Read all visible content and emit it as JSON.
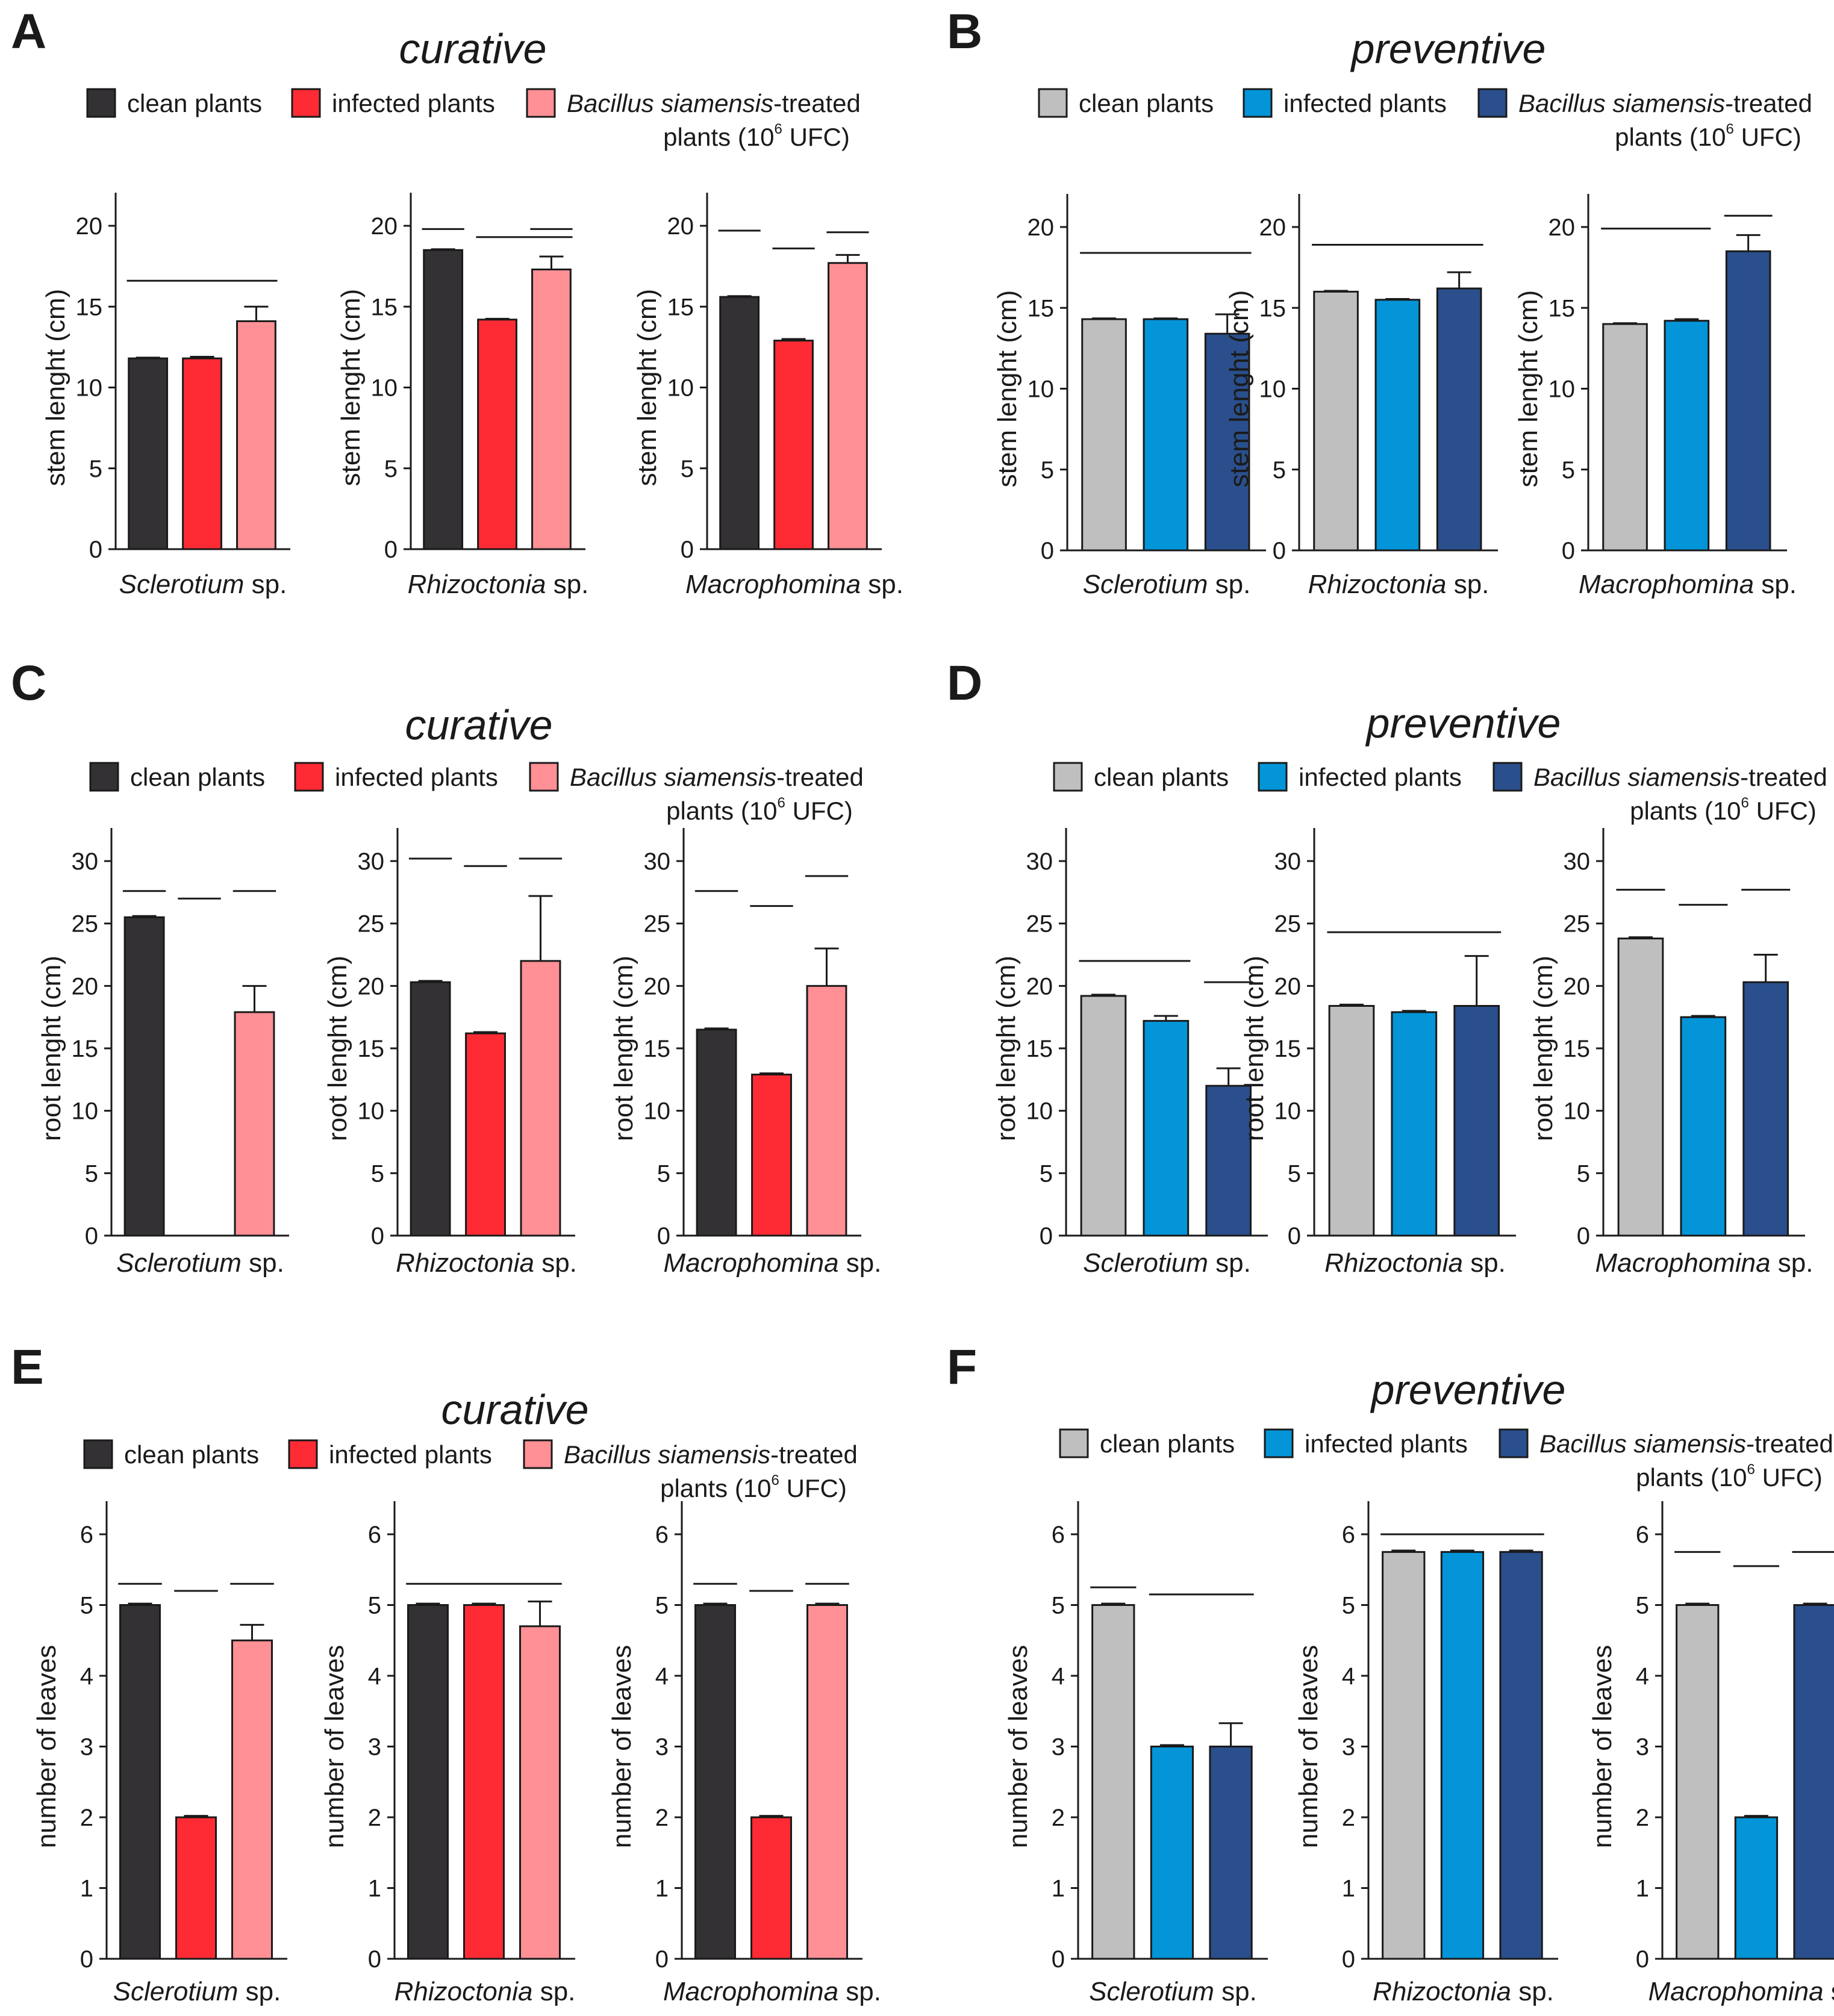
{
  "colors": {
    "curative": [
      "#333133",
      "#ff2b34",
      "#ff9095"
    ],
    "preventive": [
      "#bfbfc0",
      "#0395d8",
      "#2a4f8c"
    ]
  },
  "chart_data": [
    {
      "panel": "A",
      "title": "curative",
      "type": "bar",
      "scheme": "curative",
      "legend": [
        "clean plants",
        "infected plants",
        "Bacillus siamensis-treated plants (10^6 UFC)"
      ],
      "legend_text": {
        "clean": "clean plants",
        "infected": "infected plants",
        "treated_italic": "Bacillus siamensis",
        "treated_rest": "-treated",
        "line2_a": "plants (10",
        "line2_sup": "6",
        "line2_b": " UFC)"
      },
      "ylabel": "stem lenght (cm)",
      "ylim": [
        0,
        20
      ],
      "yticks": [
        0,
        5,
        10,
        15,
        20
      ],
      "groups": [
        {
          "name_italic": "Sclerotium",
          "name_rest": " sp.",
          "values": [
            11.8,
            11.8,
            14.1
          ],
          "errors": [
            0.05,
            0.1,
            0.9
          ],
          "sig_lines": [
            [
              0,
              2,
              16.6
            ]
          ]
        },
        {
          "name_italic": "Rhizoctonia",
          "name_rest": " sp.",
          "values": [
            18.5,
            14.2,
            17.3
          ],
          "errors": [
            0.05,
            0.05,
            0.8
          ],
          "sig_lines": [
            [
              0,
              0,
              19.8
            ],
            [
              1,
              2,
              19.3
            ],
            [
              2,
              2,
              19.8
            ]
          ]
        },
        {
          "name_italic": "Macrophomina",
          "name_rest": " sp.",
          "values": [
            15.6,
            12.9,
            17.7
          ],
          "errors": [
            0.05,
            0.1,
            0.5
          ],
          "sig_lines": [
            [
              0,
              0,
              19.7
            ],
            [
              1,
              1,
              18.6
            ],
            [
              2,
              2,
              19.6
            ]
          ]
        }
      ]
    },
    {
      "panel": "B",
      "title": "preventive",
      "type": "bar",
      "scheme": "preventive",
      "legend": [
        "clean plants",
        "infected plants",
        "Bacillus siamensis-treated plants (10^6 UFC)"
      ],
      "legend_text": {
        "clean": "clean plants",
        "infected": "infected plants",
        "treated_italic": "Bacillus siamensis",
        "treated_rest": "-treated",
        "line2_a": "plants (10",
        "line2_sup": "6",
        "line2_b": " UFC)"
      },
      "ylabel": "stem lenght (cm)",
      "ylim": [
        0,
        20
      ],
      "yticks": [
        0,
        5,
        10,
        15,
        20
      ],
      "groups": [
        {
          "name_italic": "Sclerotium",
          "name_rest": " sp.",
          "values": [
            14.3,
            14.3,
            13.4
          ],
          "errors": [
            0.05,
            0.05,
            1.2
          ],
          "sig_lines": [
            [
              0,
              2,
              18.4
            ]
          ]
        },
        {
          "name_italic": "Rhizoctonia",
          "name_rest": " sp.",
          "values": [
            16.0,
            15.5,
            16.2
          ],
          "errors": [
            0.05,
            0.05,
            1.0
          ],
          "sig_lines": [
            [
              0,
              2,
              18.9
            ]
          ]
        },
        {
          "name_italic": "Macrophomina",
          "name_rest": " sp.",
          "values": [
            14.0,
            14.2,
            18.5
          ],
          "errors": [
            0.05,
            0.1,
            1.0
          ],
          "sig_lines": [
            [
              0,
              1,
              19.9
            ],
            [
              2,
              2,
              20.7
            ]
          ]
        }
      ]
    },
    {
      "panel": "C",
      "title": "curative",
      "type": "bar",
      "scheme": "curative",
      "legend": [
        "clean plants",
        "infected plants",
        "Bacillus siamensis-treated plants (10^6 UFC)"
      ],
      "legend_text": {
        "clean": "clean plants",
        "infected": "infected plants",
        "treated_italic": "Bacillus siamensis",
        "treated_rest": "-treated",
        "line2_a": "plants (10",
        "line2_sup": "6",
        "line2_b": " UFC)"
      },
      "ylabel": "root lenght (cm)",
      "ylim": [
        0,
        30
      ],
      "yticks": [
        0,
        5,
        10,
        15,
        20,
        25,
        30
      ],
      "groups": [
        {
          "name_italic": "Sclerotium",
          "name_rest": " sp.",
          "values": [
            25.5,
            0,
            17.9
          ],
          "errors": [
            0.1,
            0,
            2.1
          ],
          "sig_lines": [
            [
              0,
              0,
              27.6
            ],
            [
              1,
              1,
              27.0
            ],
            [
              2,
              2,
              27.6
            ]
          ]
        },
        {
          "name_italic": "Rhizoctonia",
          "name_rest": " sp.",
          "values": [
            20.3,
            16.2,
            22.0
          ],
          "errors": [
            0.1,
            0.1,
            5.2
          ],
          "sig_lines": [
            [
              0,
              0,
              30.2
            ],
            [
              1,
              1,
              29.6
            ],
            [
              2,
              2,
              30.2
            ]
          ]
        },
        {
          "name_italic": "Macrophomina",
          "name_rest": " sp.",
          "values": [
            16.5,
            12.9,
            20.0
          ],
          "errors": [
            0.1,
            0.1,
            3.0
          ],
          "sig_lines": [
            [
              0,
              0,
              27.6
            ],
            [
              1,
              1,
              26.4
            ],
            [
              2,
              2,
              28.8
            ]
          ]
        }
      ]
    },
    {
      "panel": "D",
      "title": "preventive",
      "type": "bar",
      "scheme": "preventive",
      "legend": [
        "clean plants",
        "infected plants",
        "Bacillus siamensis-treated plants (10^6 UFC)"
      ],
      "legend_text": {
        "clean": "clean plants",
        "infected": "infected plants",
        "treated_italic": "Bacillus siamensis",
        "treated_rest": "-treated",
        "line2_a": "plants (10",
        "line2_sup": "6",
        "line2_b": " UFC)"
      },
      "ylabel": "root lenght (cm)",
      "ylim": [
        0,
        30
      ],
      "yticks": [
        0,
        5,
        10,
        15,
        20,
        25,
        30
      ],
      "groups": [
        {
          "name_italic": "Sclerotium",
          "name_rest": " sp.",
          "values": [
            19.2,
            17.2,
            12.0
          ],
          "errors": [
            0.1,
            0.4,
            1.4
          ],
          "sig_lines": [
            [
              0,
              1,
              22.0
            ],
            [
              2,
              2,
              20.3
            ]
          ]
        },
        {
          "name_italic": "Rhizoctonia",
          "name_rest": " sp.",
          "values": [
            18.4,
            17.9,
            18.4
          ],
          "errors": [
            0.1,
            0.1,
            4.0
          ],
          "sig_lines": [
            [
              0,
              2,
              24.3
            ]
          ]
        },
        {
          "name_italic": "Macrophomina",
          "name_rest": " sp.",
          "values": [
            23.8,
            17.5,
            20.3
          ],
          "errors": [
            0.1,
            0.1,
            2.2
          ],
          "sig_lines": [
            [
              0,
              0,
              27.7
            ],
            [
              1,
              1,
              26.5
            ],
            [
              2,
              2,
              27.7
            ]
          ]
        }
      ]
    },
    {
      "panel": "E",
      "title": "curative",
      "type": "bar",
      "scheme": "curative",
      "legend": [
        "clean plants",
        "infected plants",
        "Bacillus siamensis-treated plants (10^6 UFC)"
      ],
      "legend_text": {
        "clean": "clean plants",
        "infected": "infected plants",
        "treated_italic": "Bacillus siamensis",
        "treated_rest": "-treated",
        "line2_a": "plants (10",
        "line2_sup": "6",
        "line2_b": " UFC)"
      },
      "ylabel": "number of leaves",
      "ylim": [
        0,
        6
      ],
      "yticks": [
        0,
        1,
        2,
        3,
        4,
        5,
        6
      ],
      "groups": [
        {
          "name_italic": "Sclerotium",
          "name_rest": " sp.",
          "values": [
            5.0,
            2.0,
            4.5
          ],
          "errors": [
            0.02,
            0.02,
            0.22
          ],
          "sig_lines": [
            [
              0,
              0,
              5.3
            ],
            [
              1,
              1,
              5.2
            ],
            [
              2,
              2,
              5.3
            ]
          ]
        },
        {
          "name_italic": "Rhizoctonia",
          "name_rest": " sp.",
          "values": [
            5.0,
            5.0,
            4.7
          ],
          "errors": [
            0.02,
            0.02,
            0.35
          ],
          "sig_lines": [
            [
              0,
              2,
              5.3
            ]
          ]
        },
        {
          "name_italic": "Macrophomina",
          "name_rest": " sp.",
          "values": [
            5.0,
            2.0,
            5.0
          ],
          "errors": [
            0.02,
            0.02,
            0.02
          ],
          "sig_lines": [
            [
              0,
              0,
              5.3
            ],
            [
              1,
              1,
              5.2
            ],
            [
              2,
              2,
              5.3
            ]
          ]
        }
      ]
    },
    {
      "panel": "F",
      "title": "preventive",
      "type": "bar",
      "scheme": "preventive",
      "legend": [
        "clean plants",
        "infected plants",
        "Bacillus siamensis-treated plants (10^6 UFC)"
      ],
      "legend_text": {
        "clean": "clean plants",
        "infected": "infected plants",
        "treated_italic": "Bacillus siamensis",
        "treated_rest": "-treated",
        "line2_a": "plants (10",
        "line2_sup": "6",
        "line2_b": " UFC)"
      },
      "ylabel": "number of leaves",
      "ylim": [
        0,
        6
      ],
      "yticks": [
        0,
        1,
        2,
        3,
        4,
        5,
        6
      ],
      "groups": [
        {
          "name_italic": "Sclerotium",
          "name_rest": " sp.",
          "values": [
            5.0,
            3.0,
            3.0
          ],
          "errors": [
            0.02,
            0.02,
            0.33
          ],
          "sig_lines": [
            [
              0,
              0,
              5.25
            ],
            [
              1,
              2,
              5.15
            ]
          ]
        },
        {
          "name_italic": "Rhizoctonia",
          "name_rest": " sp.",
          "values": [
            5.75,
            5.75,
            5.75
          ],
          "errors": [
            0.02,
            0.02,
            0.02
          ],
          "sig_lines": [
            [
              0,
              2,
              6.0
            ]
          ]
        },
        {
          "name_italic": "Macrophomina",
          "name_rest": " sp.",
          "values": [
            5.0,
            2.0,
            5.0
          ],
          "errors": [
            0.02,
            0.02,
            0.02
          ],
          "sig_lines": [
            [
              0,
              0,
              5.75
            ],
            [
              1,
              1,
              5.55
            ],
            [
              2,
              2,
              5.75
            ]
          ]
        }
      ]
    }
  ]
}
